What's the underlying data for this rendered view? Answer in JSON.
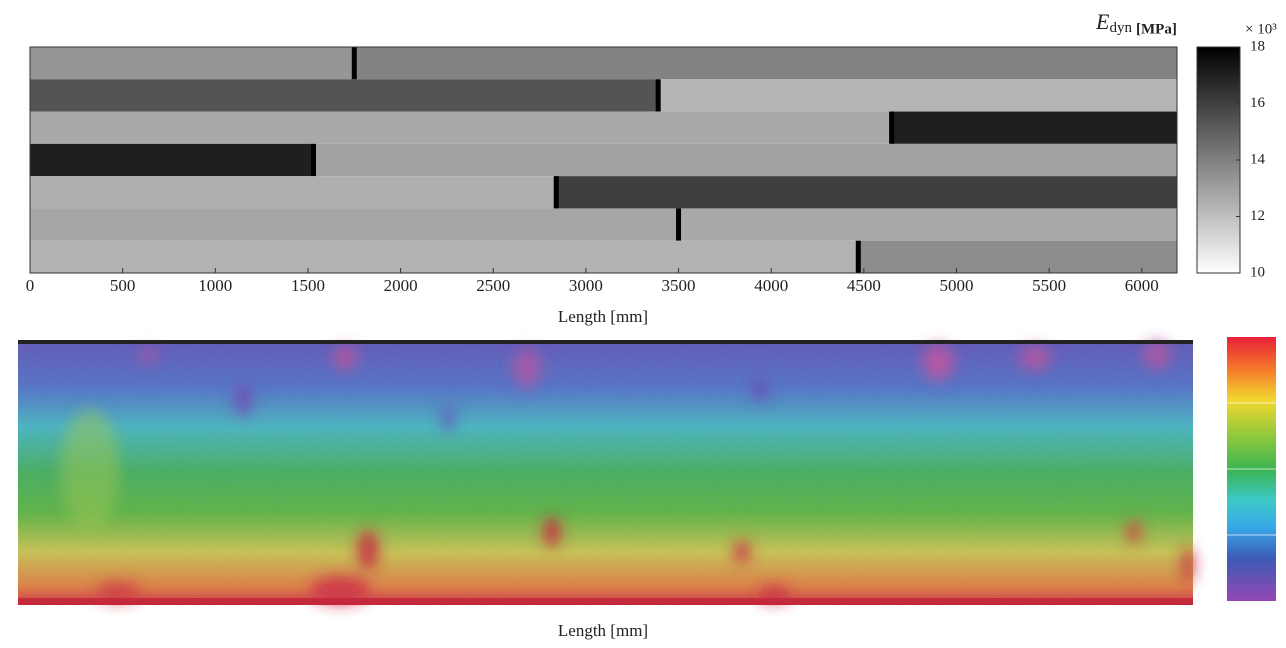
{
  "chart_data": [
    {
      "type": "segments",
      "xlabel": "Length [mm]",
      "xlim": [
        0,
        6190
      ],
      "xticks": [
        0,
        500,
        1000,
        1500,
        2000,
        2500,
        3000,
        3500,
        4000,
        4500,
        5000,
        5500,
        6000
      ],
      "rows": [
        {
          "joint": 1750,
          "values": [
            13.2,
            13.8
          ]
        },
        {
          "joint": 3390,
          "values": [
            15.3,
            12.2
          ]
        },
        {
          "joint": 4650,
          "values": [
            12.6,
            17.0
          ]
        },
        {
          "joint": 1530,
          "values": [
            17.0,
            12.8
          ]
        },
        {
          "joint": 2840,
          "values": [
            12.4,
            16.0
          ]
        },
        {
          "joint": 3500,
          "values": [
            12.7,
            12.6
          ]
        },
        {
          "joint": 4470,
          "values": [
            12.3,
            13.5
          ]
        }
      ],
      "colorbar_title": "E",
      "colorbar_title_sub": "dyn",
      "colorbar_unit": "[MPa]",
      "colorbar_scale": "× 10³",
      "clim": [
        10,
        18
      ],
      "cticks": [
        10,
        12,
        14,
        16,
        18
      ],
      "joint_color": "#000000"
    },
    {
      "type": "image",
      "xlabel": "Length [mm]"
    }
  ]
}
